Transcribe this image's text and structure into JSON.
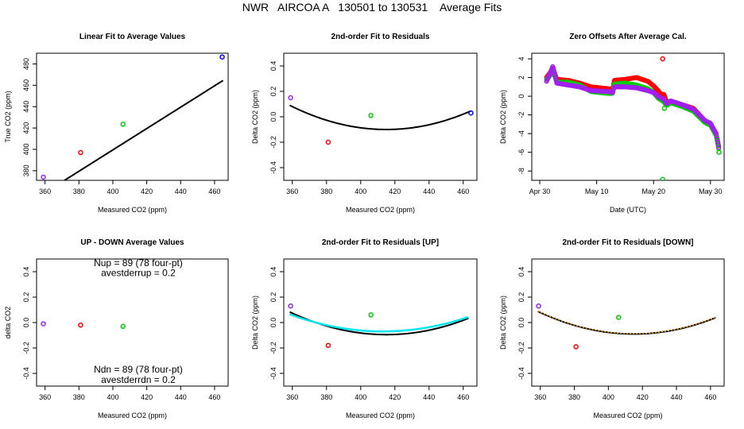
{
  "figure": {
    "title": "NWR   AIRCOA A   130501 to 130531    Average Fits"
  },
  "colors": {
    "axis": "#000000",
    "fit_line": "#000000",
    "up_line": "#00e5ee",
    "down_line": "#ffa500",
    "purple": "#a020f0",
    "red": "#ff0000",
    "green": "#00cd00",
    "blue": "#0000ff"
  },
  "chart_data": [
    {
      "id": "p1",
      "type": "scatter",
      "title": "Linear Fit to Average Values",
      "xlabel": "Measured CO2 (ppm)",
      "ylabel": "True CO2 (ppm)",
      "xlim": [
        355,
        468
      ],
      "ylim": [
        371,
        490
      ],
      "xticks": [
        360,
        380,
        400,
        420,
        440,
        460
      ],
      "xtick_labels": [
        "360",
        "380",
        "400",
        "420",
        "440",
        "460"
      ],
      "yticks": [
        380,
        400,
        420,
        440,
        460,
        480
      ],
      "ytick_labels": [
        "380",
        "400",
        "420",
        "440",
        "460",
        "480"
      ],
      "points": [
        {
          "x": 359,
          "y": 374,
          "color": "purple"
        },
        {
          "x": 381,
          "y": 397,
          "color": "red"
        },
        {
          "x": 406,
          "y": 423.5,
          "color": "green"
        },
        {
          "x": 464.5,
          "y": 486.5,
          "color": "blue"
        }
      ],
      "lines": [
        {
          "kind": "poly",
          "coef": [
            -0.5,
            1.0
          ],
          "from": 358,
          "to": 465,
          "color": "fit_line",
          "width": 2
        }
      ],
      "annotations": []
    },
    {
      "id": "p2",
      "type": "scatter",
      "title": "2nd-order Fit to Residuals",
      "xlabel": "Measured CO2 (ppm)",
      "ylabel": "Delta CO2 (ppm)",
      "xlim": [
        355,
        468
      ],
      "ylim": [
        -0.5,
        0.5
      ],
      "xticks": [
        360,
        380,
        400,
        420,
        440,
        460
      ],
      "xtick_labels": [
        "360",
        "380",
        "400",
        "420",
        "440",
        "460"
      ],
      "yticks": [
        -0.4,
        -0.2,
        0.0,
        0.2,
        0.4
      ],
      "ytick_labels": [
        "-0.4",
        "-0.2",
        "0.0",
        "0.2",
        "0.4"
      ],
      "points": [
        {
          "x": 359,
          "y": 0.15,
          "color": "purple"
        },
        {
          "x": 381,
          "y": -0.2,
          "color": "red"
        },
        {
          "x": 406,
          "y": 0.01,
          "color": "green"
        },
        {
          "x": 464.5,
          "y": 0.03,
          "color": "blue"
        }
      ],
      "lines": [
        {
          "kind": "vertex",
          "vx": 415,
          "vy": -0.1,
          "a": 5.96e-05,
          "from": 358.5,
          "to": 464.5,
          "color": "fit_line",
          "width": 2
        }
      ],
      "annotations": []
    },
    {
      "id": "p3",
      "type": "scatter",
      "title": "Zero Offsets After Average Cal.",
      "xlabel": "Date (UTC)",
      "ylabel": "Delta CO2 (ppm)",
      "xlim": [
        -1.4,
        32.4
      ],
      "ylim": [
        -9.0,
        4.6
      ],
      "xticks": [
        0,
        10,
        20,
        30
      ],
      "xtick_labels": [
        "Apr 30",
        "May 10",
        "May 20",
        "May 30"
      ],
      "yticks": [
        -8,
        -6,
        -4,
        -2,
        0,
        2,
        4
      ],
      "ytick_labels": [
        "-8",
        "-6",
        "-4",
        "-2",
        "0",
        "2",
        "4"
      ],
      "points": [
        {
          "x": 21.6,
          "y": 4.0,
          "color": "red"
        },
        {
          "x": 21.6,
          "y": -8.9,
          "color": "green"
        },
        {
          "x": 21.9,
          "y": -1.3,
          "color": "green"
        },
        {
          "x": 31.5,
          "y": -6.0,
          "color": "green"
        }
      ],
      "series": [
        {
          "name": "red",
          "color": "red",
          "step": 0.09,
          "knots": [
            [
              1.2,
              2.0
            ],
            [
              1.8,
              2.5
            ],
            [
              2.3,
              3.0
            ],
            [
              3.0,
              1.8
            ],
            [
              5.0,
              1.7
            ],
            [
              7.0,
              1.4
            ],
            [
              9.0,
              1.0
            ],
            [
              12.0,
              0.8
            ],
            [
              12.8,
              0.7
            ],
            [
              13.1,
              1.7
            ],
            [
              15.0,
              1.8
            ],
            [
              17.0,
              2.0
            ],
            [
              19.0,
              1.6
            ],
            [
              20.0,
              1.1
            ],
            [
              20.8,
              0.6
            ],
            [
              21.3,
              0.2
            ],
            [
              21.8,
              0.2
            ],
            [
              22.3,
              -0.6
            ],
            [
              23.0,
              -0.6
            ],
            [
              25.0,
              -0.9
            ],
            [
              27.0,
              -1.3
            ],
            [
              29.0,
              -2.6
            ],
            [
              30.0,
              -3.0
            ],
            [
              31.0,
              -4.0
            ],
            [
              31.5,
              -5.5
            ]
          ]
        },
        {
          "name": "green",
          "color": "green",
          "step": 0.09,
          "knots": [
            [
              1.2,
              1.8
            ],
            [
              1.8,
              2.2
            ],
            [
              2.3,
              2.8
            ],
            [
              3.0,
              1.5
            ],
            [
              5.0,
              1.5
            ],
            [
              7.0,
              1.2
            ],
            [
              9.0,
              0.5
            ],
            [
              12.0,
              0.3
            ],
            [
              12.8,
              0.3
            ],
            [
              13.1,
              1.3
            ],
            [
              15.0,
              1.4
            ],
            [
              17.0,
              1.2
            ],
            [
              19.0,
              0.8
            ],
            [
              20.0,
              0.4
            ],
            [
              20.8,
              -0.2
            ],
            [
              21.3,
              -0.4
            ],
            [
              21.8,
              -0.6
            ],
            [
              22.3,
              -1.0
            ],
            [
              23.0,
              -0.7
            ],
            [
              25.0,
              -1.1
            ],
            [
              27.0,
              -1.6
            ],
            [
              29.0,
              -2.8
            ],
            [
              30.0,
              -3.1
            ],
            [
              31.0,
              -4.2
            ],
            [
              31.5,
              -5.8
            ]
          ]
        },
        {
          "name": "purple",
          "color": "purple",
          "step": 0.09,
          "knots": [
            [
              1.2,
              1.6
            ],
            [
              1.8,
              2.4
            ],
            [
              2.3,
              3.2
            ],
            [
              3.0,
              1.4
            ],
            [
              5.0,
              1.2
            ],
            [
              7.0,
              1.0
            ],
            [
              9.0,
              0.6
            ],
            [
              12.0,
              0.5
            ],
            [
              12.8,
              0.4
            ],
            [
              13.1,
              1.0
            ],
            [
              15.0,
              1.0
            ],
            [
              17.0,
              0.9
            ],
            [
              19.0,
              0.6
            ],
            [
              20.0,
              0.4
            ],
            [
              20.8,
              0.0
            ],
            [
              21.3,
              -0.2
            ],
            [
              21.8,
              -0.3
            ],
            [
              22.3,
              -0.8
            ],
            [
              23.0,
              -0.5
            ],
            [
              25.0,
              -0.9
            ],
            [
              27.0,
              -1.4
            ],
            [
              29.0,
              -2.6
            ],
            [
              30.0,
              -2.9
            ],
            [
              31.0,
              -4.0
            ],
            [
              31.5,
              -5.7
            ]
          ]
        }
      ],
      "lines": [],
      "annotations": []
    },
    {
      "id": "p4",
      "type": "scatter",
      "title": "UP - DOWN Average Values",
      "xlabel": "Measured CO2 (ppm)",
      "ylabel": "delta CO2",
      "xlim": [
        355,
        468
      ],
      "ylim": [
        -0.5,
        0.5
      ],
      "xticks": [
        360,
        380,
        400,
        420,
        440,
        460
      ],
      "xtick_labels": [
        "360",
        "380",
        "400",
        "420",
        "440",
        "460"
      ],
      "yticks": [
        -0.4,
        -0.2,
        0.0,
        0.2,
        0.4
      ],
      "ytick_labels": [
        "-0.4",
        "-0.2",
        "0.0",
        "0.2",
        "0.4"
      ],
      "points": [
        {
          "x": 359,
          "y": -0.01,
          "color": "purple"
        },
        {
          "x": 381,
          "y": -0.02,
          "color": "red"
        },
        {
          "x": 406,
          "y": -0.03,
          "color": "green"
        }
      ],
      "lines": [],
      "annotations": [
        {
          "text": "Nup = 89 (78 four-pt)",
          "x": 415,
          "y": 0.47
        },
        {
          "text": "avestderrup =  0.2",
          "x": 415,
          "y": 0.39
        },
        {
          "text": "Ndn = 89 (78 four-pt)",
          "x": 415,
          "y": -0.37
        },
        {
          "text": "avestderrdn =  0.2",
          "x": 415,
          "y": -0.45
        }
      ]
    },
    {
      "id": "p5",
      "type": "scatter",
      "title": "2nd-order Fit to Residuals [UP]",
      "xlabel": "Measured CO2 (ppm)",
      "ylabel": "Delta CO2 (ppm)",
      "xlim": [
        355,
        468
      ],
      "ylim": [
        -0.5,
        0.5
      ],
      "xticks": [
        360,
        380,
        400,
        420,
        440,
        460
      ],
      "xtick_labels": [
        "360",
        "380",
        "400",
        "420",
        "440",
        "460"
      ],
      "yticks": [
        -0.4,
        -0.2,
        0.0,
        0.2,
        0.4
      ],
      "ytick_labels": [
        "-0.4",
        "-0.2",
        "0.0",
        "0.2",
        "0.4"
      ],
      "points": [
        {
          "x": 359,
          "y": 0.13,
          "color": "purple"
        },
        {
          "x": 381,
          "y": -0.18,
          "color": "red"
        },
        {
          "x": 406,
          "y": 0.06,
          "color": "green"
        }
      ],
      "lines": [
        {
          "kind": "vertex",
          "vx": 415,
          "vy": -0.095,
          "a": 5.58e-05,
          "from": 358.5,
          "to": 463,
          "color": "fit_line",
          "width": 2
        },
        {
          "kind": "vertex",
          "vx": 413,
          "vy": -0.07,
          "a": 4.55e-05,
          "from": 358.5,
          "to": 463,
          "color": "up_line",
          "width": 2.5
        }
      ],
      "annotations": []
    },
    {
      "id": "p6",
      "type": "scatter",
      "title": "2nd-order Fit to Residuals [DOWN]",
      "xlabel": "Measured CO2 (ppm)",
      "ylabel": "Delta CO2 (ppm)",
      "xlim": [
        355,
        468
      ],
      "ylim": [
        -0.5,
        0.5
      ],
      "xticks": [
        360,
        380,
        400,
        420,
        440,
        460
      ],
      "xtick_labels": [
        "360",
        "380",
        "400",
        "420",
        "440",
        "460"
      ],
      "yticks": [
        -0.4,
        -0.2,
        0.0,
        0.2,
        0.4
      ],
      "ytick_labels": [
        "-0.4",
        "-0.2",
        "0.0",
        "0.2",
        "0.4"
      ],
      "points": [
        {
          "x": 359,
          "y": 0.13,
          "color": "purple"
        },
        {
          "x": 381,
          "y": -0.19,
          "color": "red"
        },
        {
          "x": 406,
          "y": 0.04,
          "color": "green"
        }
      ],
      "lines": [
        {
          "kind": "vertex",
          "vx": 415,
          "vy": -0.09,
          "a": 5.58e-05,
          "from": 358.5,
          "to": 463,
          "color": "fit_line",
          "width": 2
        },
        {
          "kind": "vertex",
          "vx": 415,
          "vy": -0.088,
          "a": 5.58e-05,
          "from": 358.5,
          "to": 463,
          "color": "down_line",
          "width": 1.2,
          "dash": "2,2"
        }
      ],
      "annotations": []
    }
  ]
}
